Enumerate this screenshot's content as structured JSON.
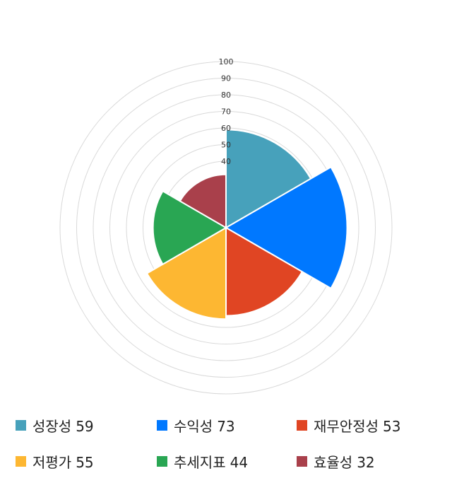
{
  "chart_data": {
    "type": "polar-area",
    "title": "",
    "categories": [
      "성장성",
      "수익성",
      "재무안정성",
      "저평가",
      "추세지표",
      "효율성"
    ],
    "values": [
      59,
      73,
      53,
      55,
      44,
      32
    ],
    "colors": [
      "#47a1bb",
      "#0078ff",
      "#e04523",
      "#fdb732",
      "#29a653",
      "#a9404b"
    ],
    "rlim": [
      0,
      100
    ],
    "ticks": [
      40,
      50,
      60,
      70,
      80,
      90,
      100
    ],
    "grid": true,
    "legend_position": "bottom"
  },
  "legend": [
    {
      "label": "성장성",
      "value": "59",
      "color": "#47a1bb"
    },
    {
      "label": "수익성",
      "value": "73",
      "color": "#0078ff"
    },
    {
      "label": "재무안정성",
      "value": "53",
      "color": "#e04523"
    },
    {
      "label": "저평가",
      "value": "55",
      "color": "#fdb732"
    },
    {
      "label": "추세지표",
      "value": "44",
      "color": "#29a653"
    },
    {
      "label": "효율성",
      "value": "32",
      "color": "#a9404b"
    }
  ]
}
